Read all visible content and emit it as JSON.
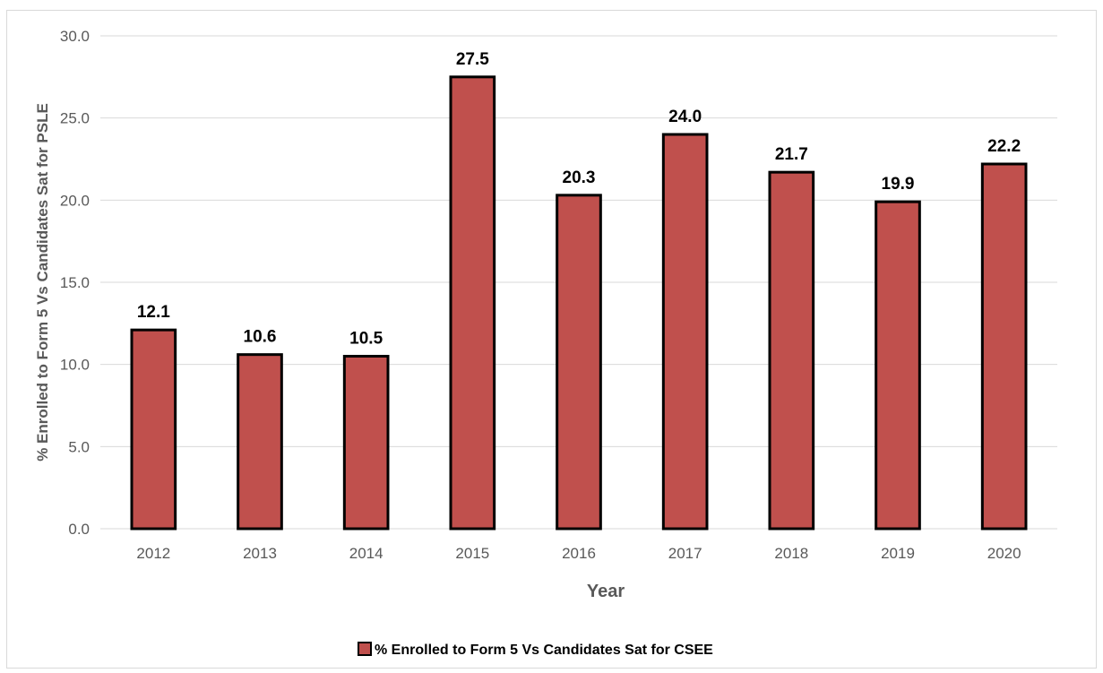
{
  "chart_data": {
    "type": "bar",
    "categories": [
      "2012",
      "2013",
      "2014",
      "2015",
      "2016",
      "2017",
      "2018",
      "2019",
      "2020"
    ],
    "series": [
      {
        "name": "% Enrolled to Form 5 Vs Candidates Sat for CSEE",
        "values": [
          12.1,
          10.6,
          10.5,
          27.5,
          20.3,
          24.0,
          21.7,
          19.9,
          22.2
        ],
        "data_labels": [
          "12.1",
          "10.6",
          "10.5",
          "27.5",
          "20.3",
          "24.0",
          "21.7",
          "19.9",
          "22.2"
        ]
      }
    ],
    "xlabel": "Year",
    "ylabel": "% Enrolled to Form 5 Vs Candidates Sat for PSLE",
    "ylim": [
      0,
      30
    ],
    "yticks": [
      "0.0",
      "5.0",
      "10.0",
      "15.0",
      "20.0",
      "25.0",
      "30.0"
    ],
    "grid": true,
    "legend_position": "bottom"
  },
  "colors": {
    "bar_fill": "#c0504d",
    "bar_stroke": "#000000",
    "gridline": "#d9d9d9",
    "tick_text": "#595959"
  }
}
